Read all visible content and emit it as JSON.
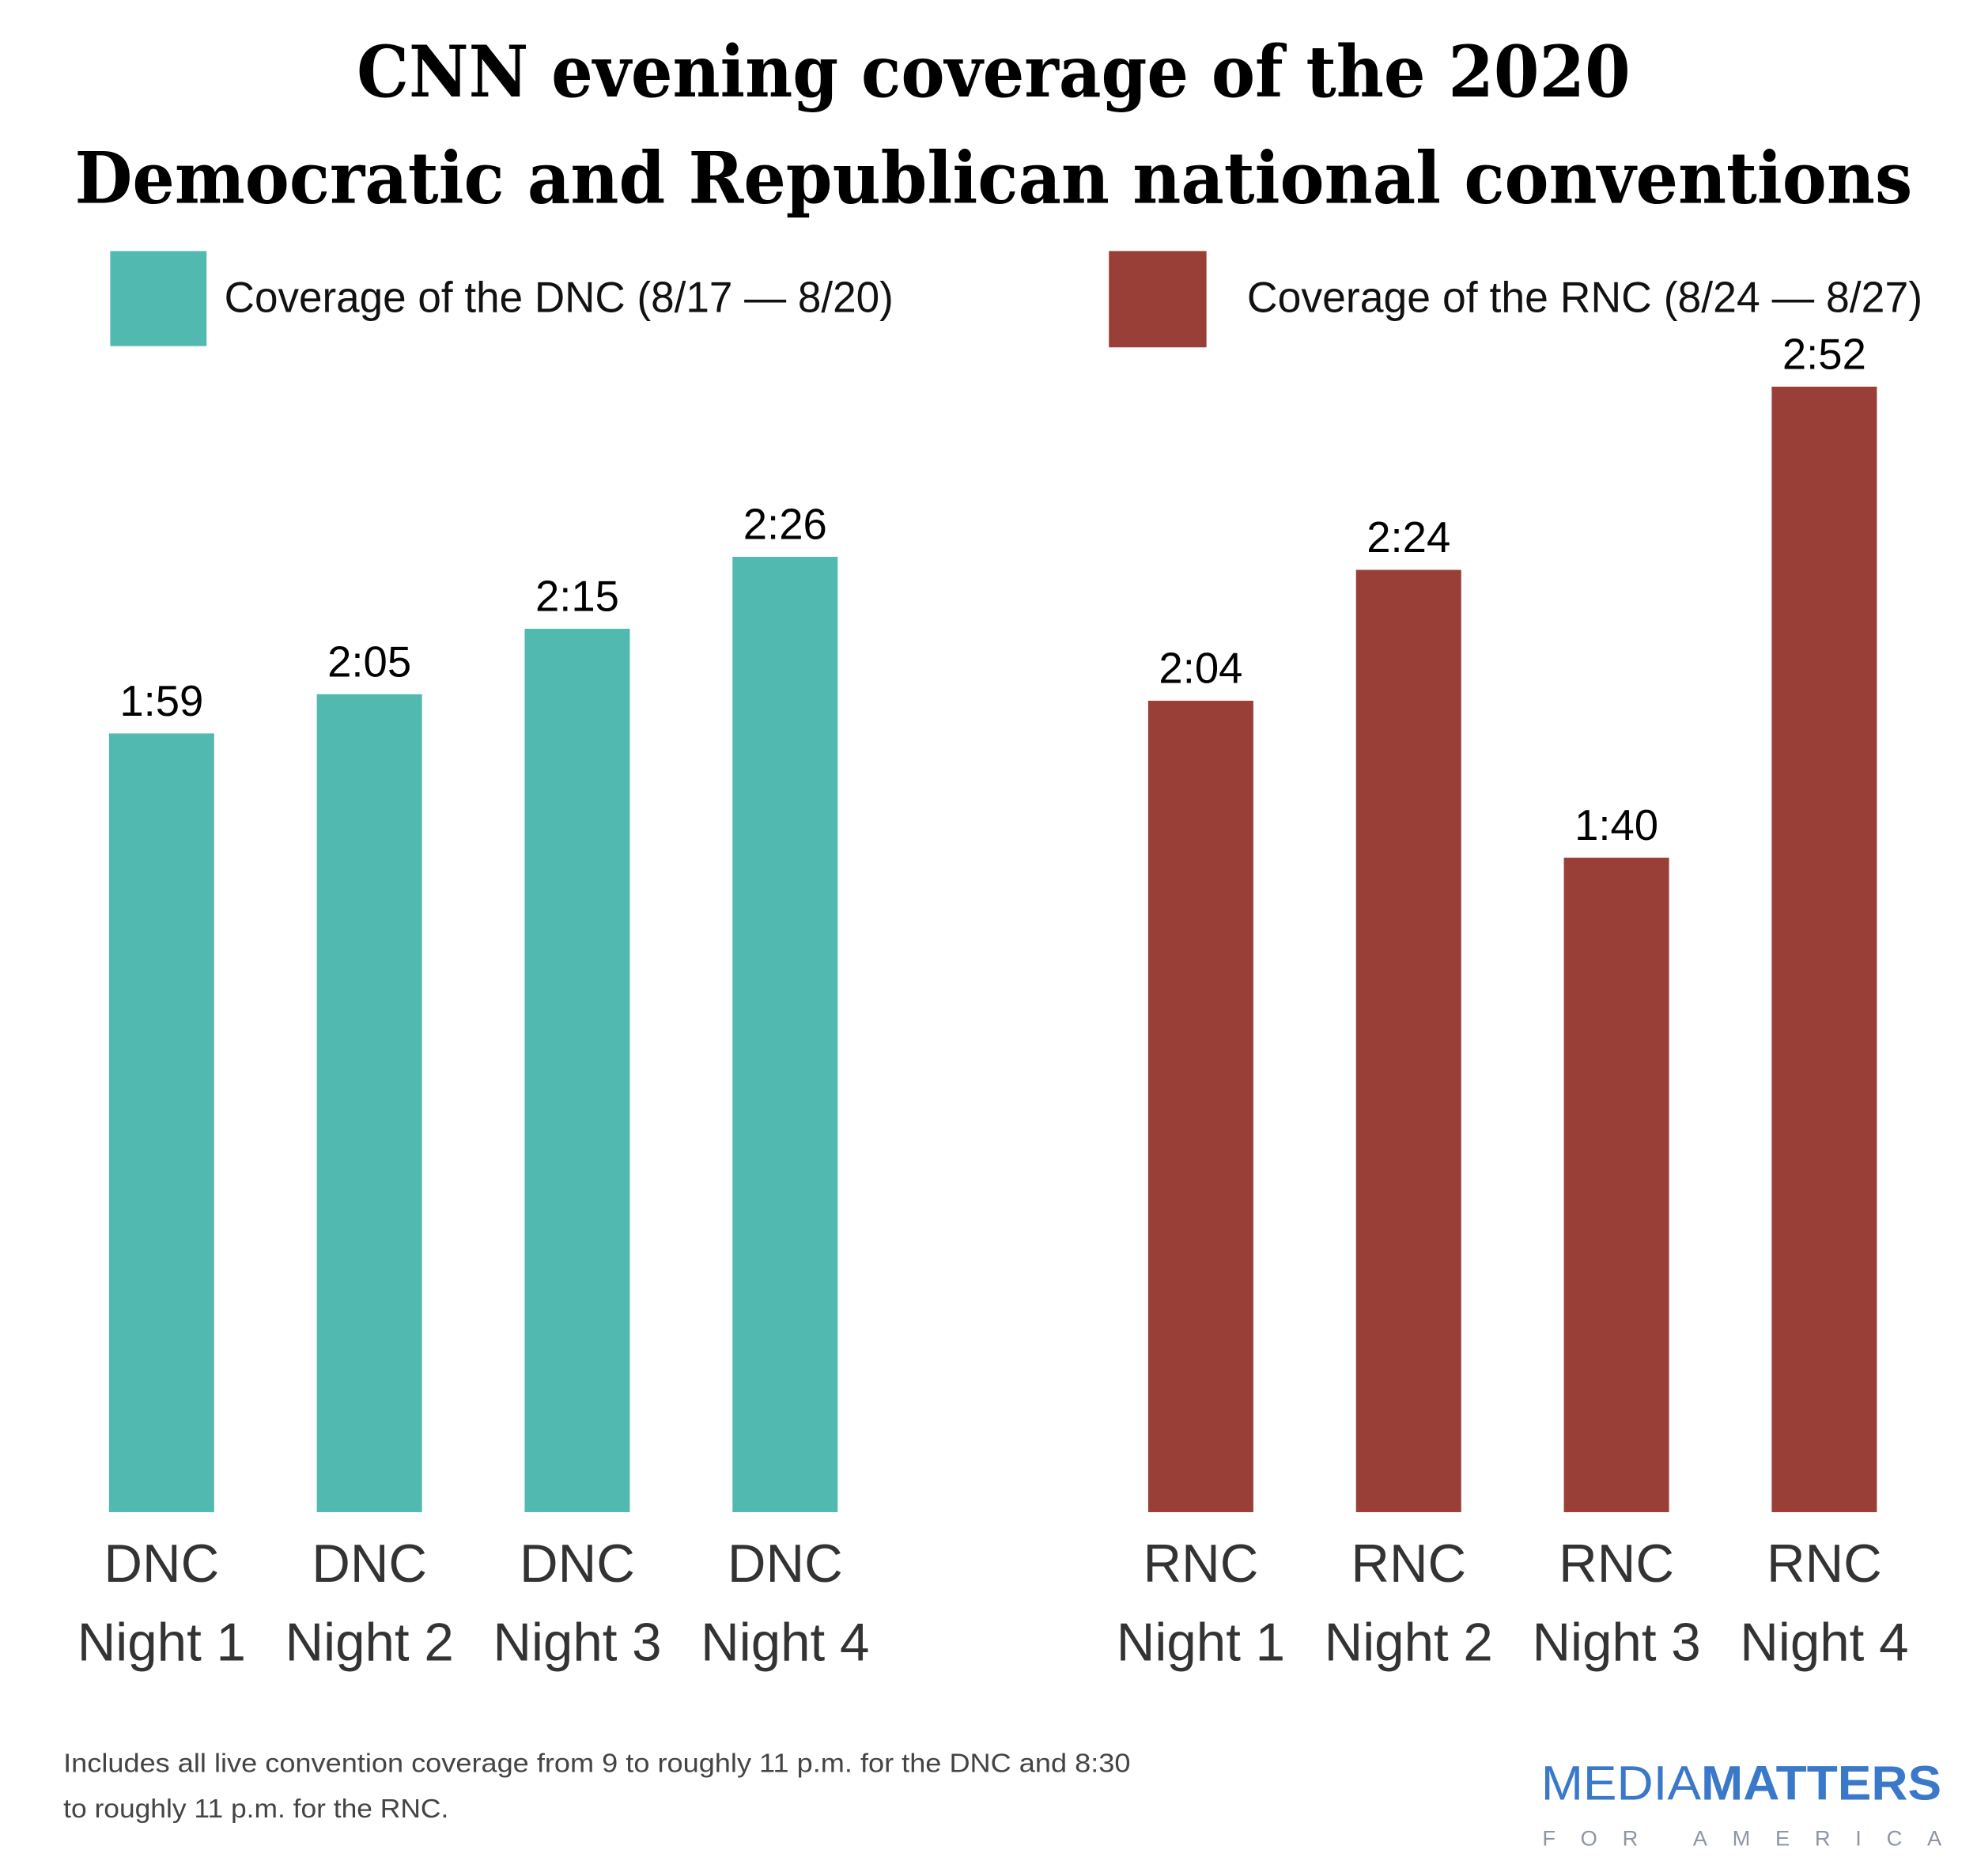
{
  "chart_data": {
    "type": "bar",
    "title_lines": [
      "CNN evening coverage of the 2020",
      "Democratic and Republican national conventions"
    ],
    "legend": [
      {
        "label": "Coverage of the DNC (8/17 — 8/20)",
        "color": "#52b9b1"
      },
      {
        "label": "Coverage of the RNC (8/24 — 8/27)",
        "color": "#9a3f37"
      }
    ],
    "legend_placement": "top",
    "unit": "hours:minutes",
    "grid": false,
    "series": [
      {
        "color": "#52b9b1",
        "categories": [
          [
            "DNC",
            "Night 1"
          ],
          [
            "DNC",
            "Night 2"
          ],
          [
            "DNC",
            "Night 3"
          ],
          [
            "DNC",
            "Night 4"
          ]
        ],
        "values": [
          119,
          125,
          135,
          146
        ],
        "value_labels": [
          "1:59",
          "2:05",
          "2:15",
          "2:26"
        ]
      },
      {
        "color": "#9a3f37",
        "categories": [
          [
            "RNC",
            "Night 1"
          ],
          [
            "RNC",
            "Night 2"
          ],
          [
            "RNC",
            "Night 3"
          ],
          [
            "RNC",
            "Night 4"
          ]
        ],
        "values": [
          124,
          144,
          100,
          172
        ],
        "value_labels": [
          "2:04",
          "2:24",
          "1:40",
          "2:52"
        ]
      }
    ],
    "ylim": [
      0,
      172
    ]
  },
  "footnote": [
    "Includes all live convention coverage from 9 to roughly 11 p.m. for the DNC and 8:30",
    "to roughly 11 p.m. for the RNC."
  ],
  "logo": {
    "word1": "MEDIA",
    "word2": "MATTERS",
    "tagline": "FOR AMERICA",
    "color": "#3a78c9",
    "tagline_color": "#8d96a3"
  }
}
